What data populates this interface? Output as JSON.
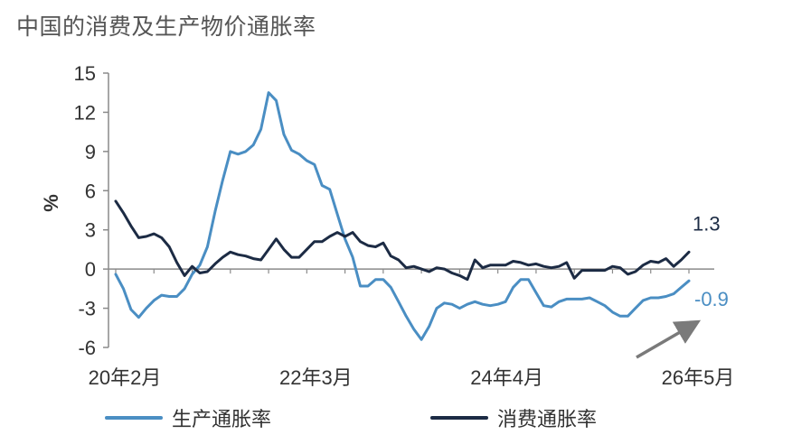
{
  "title": "中国的消费及生产物价通胀率",
  "chart_data": {
    "type": "line",
    "title": "中国的消费及生产物价通胀率",
    "ylabel": "%",
    "xlabel": "",
    "ylim": [
      -6,
      15
    ],
    "yticks": [
      15,
      12,
      9,
      6,
      3,
      0,
      -3,
      -6
    ],
    "xticks": [
      "20年2月",
      "22年3月",
      "24年4月",
      "26年5月"
    ],
    "xtick_index": [
      0,
      25,
      50,
      75
    ],
    "series": [
      {
        "name": "生产通胀率",
        "color": "#4a8ec3",
        "end_label": "-0.9",
        "values": [
          -0.4,
          -1.5,
          -3.1,
          -3.7,
          -3.0,
          -2.4,
          -2.0,
          -2.1,
          -2.1,
          -1.5,
          -0.4,
          0.3,
          1.7,
          4.4,
          6.8,
          9.0,
          8.8,
          9.0,
          9.5,
          10.7,
          13.5,
          12.9,
          10.3,
          9.1,
          8.8,
          8.3,
          8.0,
          6.4,
          6.1,
          4.2,
          2.3,
          0.9,
          -1.3,
          -1.3,
          -0.8,
          -0.8,
          -1.4,
          -2.5,
          -3.6,
          -4.6,
          -5.4,
          -4.4,
          -3.0,
          -2.6,
          -2.7,
          -3.0,
          -2.7,
          -2.5,
          -2.7,
          -2.8,
          -2.7,
          -2.5,
          -1.4,
          -0.8,
          -0.8,
          -1.8,
          -2.8,
          -2.9,
          -2.5,
          -2.3,
          -2.3,
          -2.3,
          -2.2,
          -2.5,
          -2.8,
          -3.3,
          -3.6,
          -3.6,
          -3.0,
          -2.4,
          -2.2,
          -2.2,
          -2.1,
          -1.9,
          -1.4,
          -0.9
        ]
      },
      {
        "name": "消费通胀率",
        "color": "#1c2b44",
        "end_label": "1.3",
        "values": [
          5.2,
          4.3,
          3.3,
          2.4,
          2.5,
          2.7,
          2.4,
          1.7,
          0.5,
          -0.5,
          0.2,
          -0.3,
          -0.2,
          0.4,
          0.9,
          1.3,
          1.1,
          1.0,
          0.8,
          0.7,
          1.5,
          2.3,
          1.5,
          0.9,
          0.9,
          1.5,
          2.1,
          2.1,
          2.5,
          2.8,
          2.5,
          2.8,
          2.1,
          1.8,
          1.7,
          2.0,
          1.0,
          0.7,
          0.1,
          0.2,
          0.0,
          -0.2,
          0.1,
          0.0,
          -0.3,
          -0.5,
          -0.8,
          0.7,
          0.1,
          0.3,
          0.3,
          0.3,
          0.6,
          0.5,
          0.3,
          0.4,
          0.2,
          0.1,
          0.2,
          0.5,
          -0.7,
          -0.1,
          -0.1,
          -0.1,
          -0.1,
          0.2,
          0.1,
          -0.4,
          -0.2,
          0.3,
          0.6,
          0.5,
          0.8,
          0.2,
          0.7,
          1.3
        ]
      }
    ],
    "annotation": "arrow",
    "grid": false,
    "legend": "bottom"
  }
}
